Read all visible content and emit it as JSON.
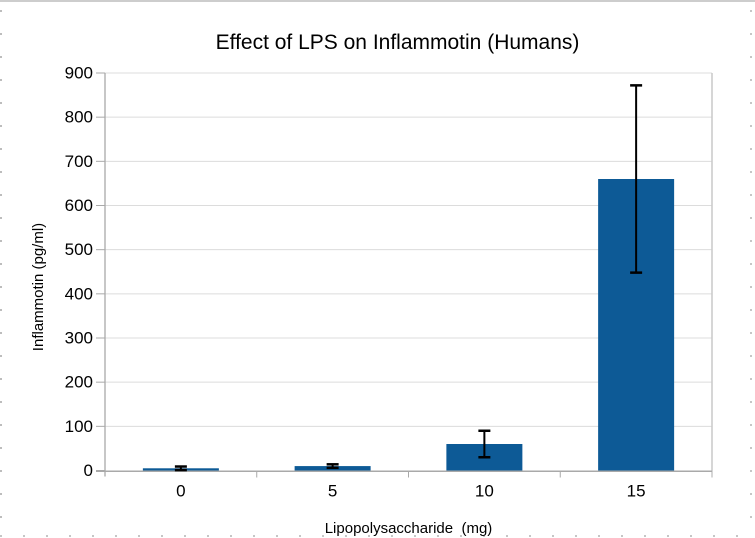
{
  "page": {
    "background": "#ffffff",
    "edge_mark_color": "#c6c6c6",
    "top_border_color": "#cdcdcd"
  },
  "chart_data": {
    "type": "bar",
    "title": "Effect of LPS on Inflammotin (Humans)",
    "xlabel": "Lipopolysaccharide  (mg)",
    "ylabel": "Inflammotin (pg/ml)",
    "categories": [
      "0",
      "5",
      "10",
      "15"
    ],
    "series": [
      {
        "name": "Inflammotin",
        "values": [
          5,
          10,
          60,
          660
        ],
        "errors": [
          4,
          4,
          30,
          212
        ]
      }
    ],
    "ylim": [
      0,
      900
    ],
    "yticks": [
      0,
      100,
      200,
      300,
      400,
      500,
      600,
      700,
      800,
      900
    ],
    "grid": true,
    "legend": "none",
    "bar_color": "#0d5a96",
    "error_bar_color": "#000000",
    "gridline_color": "#dcdcdc",
    "axis_color": "#a9a9a9",
    "plot_right_border_color": "#c9c9c9"
  }
}
